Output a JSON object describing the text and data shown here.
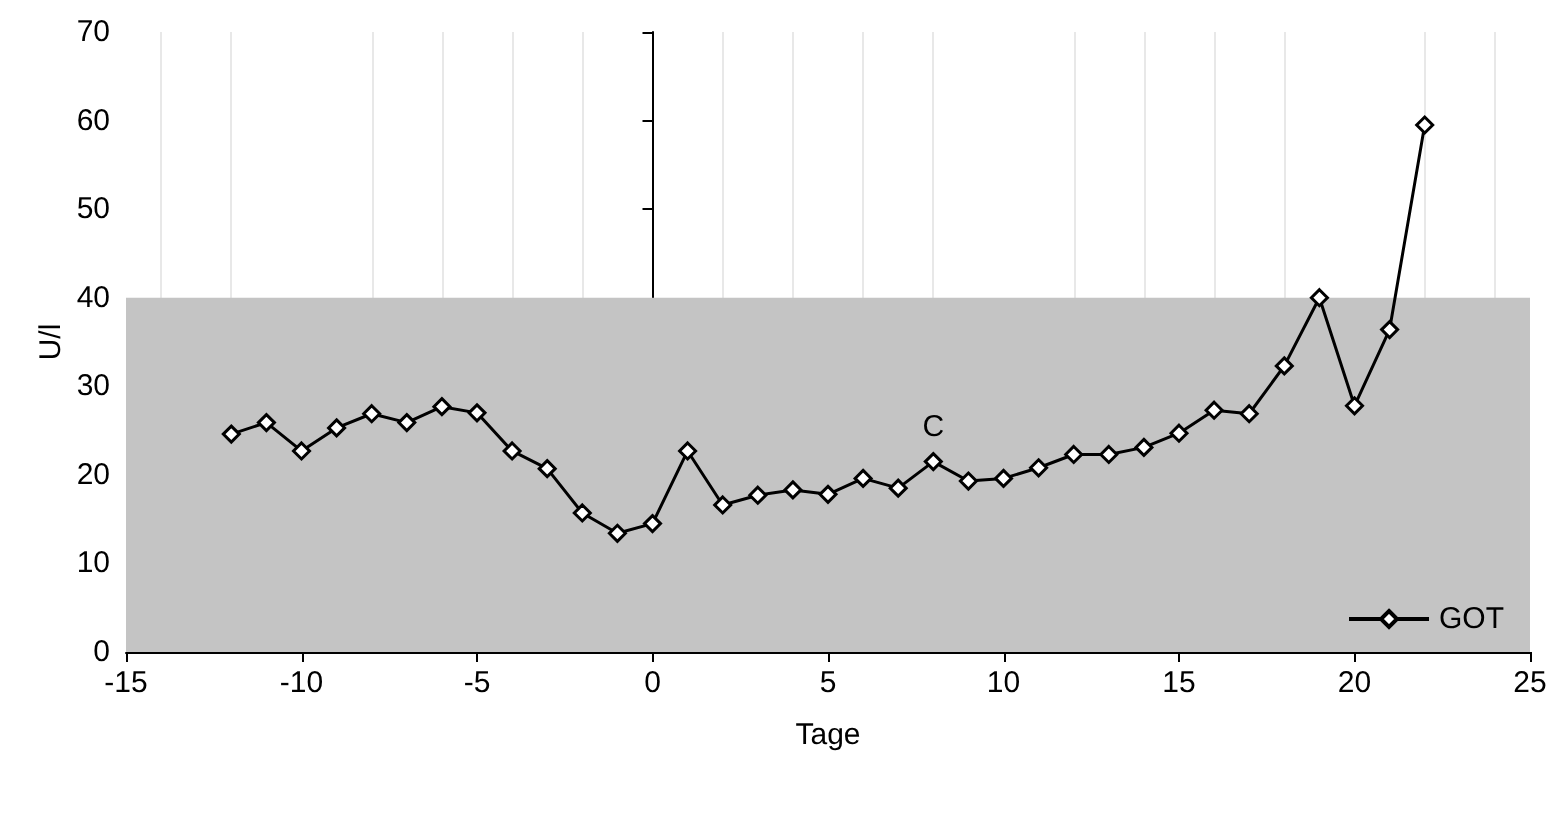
{
  "chart_data": {
    "type": "line",
    "xlabel": "Tage",
    "ylabel": "U/l",
    "x": [
      -12,
      -11,
      -10,
      -9,
      -8,
      -7,
      -6,
      -5,
      -4,
      -3,
      -2,
      -1,
      0,
      1,
      2,
      3,
      4,
      5,
      6,
      7,
      8,
      9,
      10,
      11,
      12,
      13,
      14,
      15,
      16,
      17,
      18,
      19,
      20,
      21,
      22
    ],
    "series": [
      {
        "name": "GOT",
        "color": "#000000",
        "values": [
          24.6,
          25.9,
          22.7,
          25.3,
          26.9,
          25.9,
          27.7,
          27,
          22.7,
          20.7,
          15.7,
          13.4,
          14.5,
          22.7,
          16.6,
          17.7,
          18.3,
          17.8,
          19.6,
          18.5,
          21.5,
          19.3,
          19.6,
          20.8,
          22.3,
          22.3,
          23.1,
          24.7,
          27.3,
          26.9,
          32.3,
          40,
          27.8,
          36.4,
          59.5
        ]
      }
    ],
    "xlim": [
      -15,
      25
    ],
    "xticks": [
      -15,
      -10,
      -5,
      0,
      5,
      10,
      15,
      20,
      25
    ],
    "ylim": [
      0,
      70
    ],
    "yticks": [
      0,
      10,
      20,
      30,
      40,
      50,
      60,
      70
    ],
    "bands": [
      {
        "axis": "y",
        "from": 0,
        "to": 40,
        "color": "#c4c4c4"
      }
    ],
    "annotations": [
      {
        "text": "C",
        "x": 8,
        "y": 21.5
      }
    ],
    "marker": "diamond",
    "line_style": "solid",
    "grid": "x",
    "legend": "bottom right"
  }
}
